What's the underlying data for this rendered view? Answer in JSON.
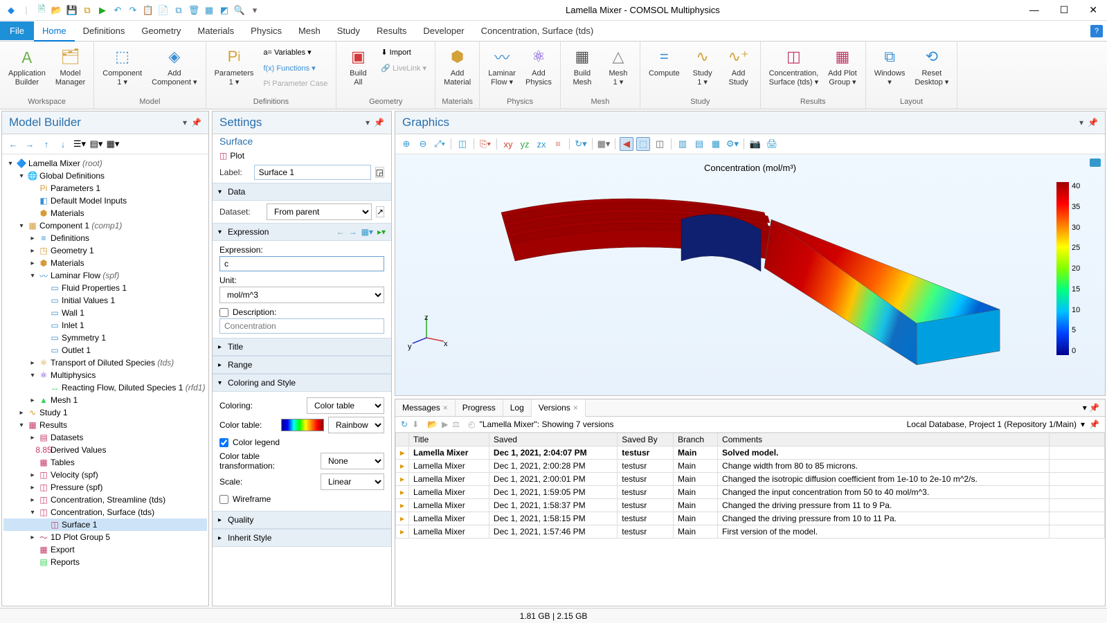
{
  "window": {
    "title": "Lamella Mixer - COMSOL Multiphysics"
  },
  "menu": {
    "file": "File",
    "items": [
      "Home",
      "Definitions",
      "Geometry",
      "Materials",
      "Physics",
      "Mesh",
      "Study",
      "Results",
      "Developer",
      "Concentration, Surface (tds)"
    ]
  },
  "ribbon": {
    "workspace": {
      "label": "Workspace",
      "app_builder": "Application\nBuilder",
      "model_mgr": "Model\nManager"
    },
    "model": {
      "label": "Model",
      "component": "Component\n1 ▾",
      "add_comp": "Add\nComponent ▾"
    },
    "definitions": {
      "label": "Definitions",
      "parameters": "Parameters\n1 ▾",
      "variables": "a= Variables ▾",
      "functions": "f(x) Functions ▾",
      "paramcase": "Pi Parameter Case"
    },
    "geometry": {
      "label": "Geometry",
      "build_all": "Build\nAll",
      "import": "⬇ Import",
      "livelink": "🔗 LiveLink ▾"
    },
    "materials": {
      "label": "Materials",
      "add_mat": "Add\nMaterial"
    },
    "physics": {
      "label": "Physics",
      "laminar": "Laminar\nFlow ▾",
      "add_phys": "Add\nPhysics"
    },
    "mesh": {
      "label": "Mesh",
      "build_mesh": "Build\nMesh",
      "mesh1": "Mesh\n1 ▾"
    },
    "study": {
      "label": "Study",
      "compute": "Compute",
      "study1": "Study\n1 ▾",
      "add_study": "Add\nStudy"
    },
    "results": {
      "label": "Results",
      "conc": "Concentration,\nSurface (tds) ▾",
      "add_plot": "Add Plot\nGroup ▾"
    },
    "layout": {
      "label": "Layout",
      "windows": "Windows\n▾",
      "reset": "Reset\nDesktop ▾"
    }
  },
  "model_builder": {
    "title": "Model Builder",
    "tree": [
      {
        "d": 0,
        "t": "▾",
        "i": "🔷",
        "l": "Lamella Mixer",
        "x": "(root)"
      },
      {
        "d": 1,
        "t": "▾",
        "i": "🌐",
        "l": "Global Definitions"
      },
      {
        "d": 2,
        "t": "",
        "i": "Pi",
        "l": "Parameters 1",
        "c": "#d49b3a"
      },
      {
        "d": 2,
        "t": "",
        "i": "◧",
        "l": "Default Model Inputs",
        "c": "#3a8fd4"
      },
      {
        "d": 2,
        "t": "",
        "i": "⬢",
        "l": "Materials",
        "c": "#d49b3a"
      },
      {
        "d": 1,
        "t": "▾",
        "i": "▦",
        "l": "Component 1",
        "x": "(comp1)",
        "c": "#d49b3a"
      },
      {
        "d": 2,
        "t": "▸",
        "i": "≡",
        "l": "Definitions",
        "c": "#3a8fd4"
      },
      {
        "d": 2,
        "t": "▸",
        "i": "◳",
        "l": "Geometry 1",
        "c": "#d49b3a"
      },
      {
        "d": 2,
        "t": "▸",
        "i": "⬢",
        "l": "Materials",
        "c": "#d49b3a"
      },
      {
        "d": 2,
        "t": "▾",
        "i": "〰",
        "l": "Laminar Flow",
        "x": "(spf)",
        "c": "#3a8fd4"
      },
      {
        "d": 3,
        "t": "",
        "i": "▭",
        "l": "Fluid Properties 1",
        "c": "#3a8fd4"
      },
      {
        "d": 3,
        "t": "",
        "i": "▭",
        "l": "Initial Values 1",
        "c": "#3a8fd4"
      },
      {
        "d": 3,
        "t": "",
        "i": "▭",
        "l": "Wall 1",
        "c": "#3a8fd4"
      },
      {
        "d": 3,
        "t": "",
        "i": "▭",
        "l": "Inlet 1",
        "c": "#3a8fd4"
      },
      {
        "d": 3,
        "t": "",
        "i": "▭",
        "l": "Symmetry 1",
        "c": "#3a8fd4"
      },
      {
        "d": 3,
        "t": "",
        "i": "▭",
        "l": "Outlet 1",
        "c": "#3a8fd4"
      },
      {
        "d": 2,
        "t": "▸",
        "i": "⚛",
        "l": "Transport of Diluted Species",
        "x": "(tds)",
        "c": "#d49b3a"
      },
      {
        "d": 2,
        "t": "▾",
        "i": "⚛",
        "l": "Multiphysics",
        "c": "#6a3ad4"
      },
      {
        "d": 3,
        "t": "",
        "i": "↔",
        "l": "Reacting Flow, Diluted Species 1",
        "x": "(rfd1)",
        "c": "#3ad45a"
      },
      {
        "d": 2,
        "t": "▸",
        "i": "▲",
        "l": "Mesh 1",
        "c": "#3ad45a"
      },
      {
        "d": 1,
        "t": "▸",
        "i": "∿",
        "l": "Study 1",
        "c": "#d49b3a"
      },
      {
        "d": 1,
        "t": "▾",
        "i": "▦",
        "l": "Results",
        "c": "#c43a6a"
      },
      {
        "d": 2,
        "t": "▸",
        "i": "▤",
        "l": "Datasets",
        "c": "#c43a6a"
      },
      {
        "d": 2,
        "t": "",
        "i": "8.85",
        "l": "Derived Values",
        "c": "#c43a6a"
      },
      {
        "d": 2,
        "t": "",
        "i": "▦",
        "l": "Tables",
        "c": "#c43a6a"
      },
      {
        "d": 2,
        "t": "▸",
        "i": "◫",
        "l": "Velocity (spf)",
        "c": "#c43a6a"
      },
      {
        "d": 2,
        "t": "▸",
        "i": "◫",
        "l": "Pressure (spf)",
        "c": "#c43a6a"
      },
      {
        "d": 2,
        "t": "▸",
        "i": "◫",
        "l": "Concentration, Streamline (tds)",
        "c": "#c43a6a"
      },
      {
        "d": 2,
        "t": "▾",
        "i": "◫",
        "l": "Concentration, Surface (tds)",
        "c": "#c43a6a"
      },
      {
        "d": 3,
        "t": "",
        "i": "◫",
        "l": "Surface 1",
        "sel": true,
        "c": "#c43a6a"
      },
      {
        "d": 2,
        "t": "▸",
        "i": "〜",
        "l": "1D Plot Group 5",
        "c": "#c43a6a"
      },
      {
        "d": 2,
        "t": "",
        "i": "▦",
        "l": "Export",
        "c": "#c43a6a"
      },
      {
        "d": 2,
        "t": "",
        "i": "▤",
        "l": "Reports",
        "c": "#3ad45a"
      }
    ]
  },
  "settings": {
    "title": "Settings",
    "subtitle": "Surface",
    "plot": "Plot",
    "label_lbl": "Label:",
    "label_val": "Surface 1",
    "data_hdr": "Data",
    "dataset_lbl": "Dataset:",
    "dataset_val": "From parent",
    "expr_hdr": "Expression",
    "expr_lbl": "Expression:",
    "expr_val": "c",
    "unit_lbl": "Unit:",
    "unit_val": "mol/m^3",
    "desc_chk": "Description:",
    "desc_ph": "Concentration",
    "title_hdr": "Title",
    "range_hdr": "Range",
    "color_hdr": "Coloring and Style",
    "coloring_lbl": "Coloring:",
    "coloring_val": "Color table",
    "ct_lbl": "Color table:",
    "ct_val": "Rainbow",
    "legend_chk": "Color legend",
    "ctt_lbl": "Color table transformation:",
    "ctt_val": "None",
    "scale_lbl": "Scale:",
    "scale_val": "Linear",
    "wf_chk": "Wireframe",
    "quality_hdr": "Quality",
    "inherit_hdr": "Inherit Style"
  },
  "graphics": {
    "title": "Graphics",
    "chart_title": "Concentration (mol/m³)",
    "colorbar": {
      "ticks": [
        "40",
        "35",
        "30",
        "25",
        "20",
        "15",
        "10",
        "5",
        "0"
      ]
    },
    "axes": {
      "x": "x",
      "y": "y",
      "z": "z"
    }
  },
  "bottom": {
    "tabs": [
      "Messages",
      "Progress",
      "Log",
      "Versions"
    ],
    "active": 3,
    "toolbar_text": "\"Lamella Mixer\": Showing 7 versions",
    "repo": "Local Database, Project 1 (Repository 1/Main)",
    "cols": [
      "",
      "Title",
      "Saved",
      "Saved By",
      "Branch",
      "Comments"
    ],
    "rows": [
      {
        "b": true,
        "title": "Lamella Mixer",
        "saved": "Dec 1, 2021, 2:04:07 PM",
        "by": "testusr",
        "branch": "Main",
        "c": "Solved model."
      },
      {
        "title": "Lamella Mixer",
        "saved": "Dec 1, 2021, 2:00:28 PM",
        "by": "testusr",
        "branch": "Main",
        "c": "Change width from 80 to 85 microns."
      },
      {
        "title": "Lamella Mixer",
        "saved": "Dec 1, 2021, 2:00:01 PM",
        "by": "testusr",
        "branch": "Main",
        "c": "Changed the isotropic diffusion coefficient from 1e-10 to 2e-10 m^2/s."
      },
      {
        "title": "Lamella Mixer",
        "saved": "Dec 1, 2021, 1:59:05 PM",
        "by": "testusr",
        "branch": "Main",
        "c": "Changed the input concentration from 50 to 40 mol/m^3."
      },
      {
        "title": "Lamella Mixer",
        "saved": "Dec 1, 2021, 1:58:37 PM",
        "by": "testusr",
        "branch": "Main",
        "c": "Changed the driving pressure from 11 to 9 Pa."
      },
      {
        "title": "Lamella Mixer",
        "saved": "Dec 1, 2021, 1:58:15 PM",
        "by": "testusr",
        "branch": "Main",
        "c": "Changed the driving pressure from 10 to 11 Pa."
      },
      {
        "title": "Lamella Mixer",
        "saved": "Dec 1, 2021, 1:57:46 PM",
        "by": "testusr",
        "branch": "Main",
        "c": "First version of the model."
      }
    ]
  },
  "status": "1.81 GB | 2.15 GB"
}
